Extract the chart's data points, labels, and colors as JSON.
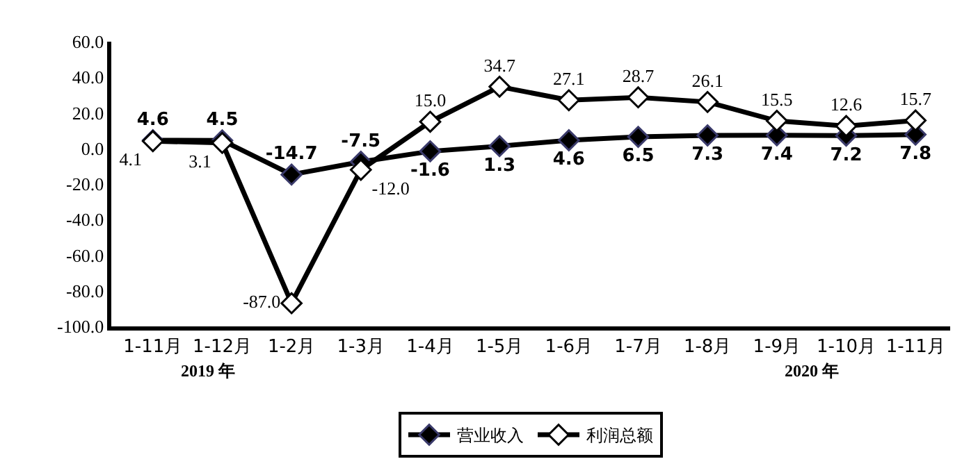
{
  "chart_data": {
    "type": "line",
    "categories": [
      "1-11月",
      "1-12月",
      "1-2月",
      "1-3月",
      "1-4月",
      "1-5月",
      "1-6月",
      "1-7月",
      "1-8月",
      "1-9月",
      "1-10月",
      "1-11月"
    ],
    "series": [
      {
        "name": "营业收入",
        "color": "#000000",
        "values": [
          4.6,
          4.5,
          -14.7,
          -7.5,
          -1.6,
          1.3,
          4.6,
          6.5,
          7.3,
          7.4,
          7.2,
          7.8
        ],
        "value_labels": [
          "4.6",
          "4.5",
          "-14.7",
          "-7.5",
          "-1.6",
          "1.3",
          "4.6",
          "6.5",
          "7.3",
          "7.4",
          "7.2",
          "7.8"
        ]
      },
      {
        "name": "利润总额",
        "color": "#000000",
        "values": [
          4.1,
          3.1,
          -87.0,
          -12.0,
          15.0,
          34.7,
          27.1,
          28.7,
          26.1,
          15.5,
          12.6,
          15.7
        ],
        "value_labels": [
          "4.1",
          "3.1",
          "-87.0",
          "-12.0",
          "15.0",
          "34.7",
          "27.1",
          "28.7",
          "26.1",
          "15.5",
          "12.6",
          "15.7"
        ]
      }
    ],
    "ylim": [
      -100,
      60
    ],
    "yticks": [
      {
        "value": -100,
        "label": "-100.0"
      },
      {
        "value": -80,
        "label": "-80.0"
      },
      {
        "value": -60,
        "label": "-60.0"
      },
      {
        "value": -40,
        "label": "-40.0"
      },
      {
        "value": -20,
        "label": "-20.0"
      },
      {
        "value": 0,
        "label": "0.0"
      },
      {
        "value": 20,
        "label": "20.0"
      },
      {
        "value": 40,
        "label": "40.0"
      },
      {
        "value": 60,
        "label": "60.0"
      }
    ],
    "annotations": [
      "2019 年",
      "2020 年"
    ],
    "legend": "bottom",
    "marker": "diamond",
    "line_style": "solid"
  }
}
